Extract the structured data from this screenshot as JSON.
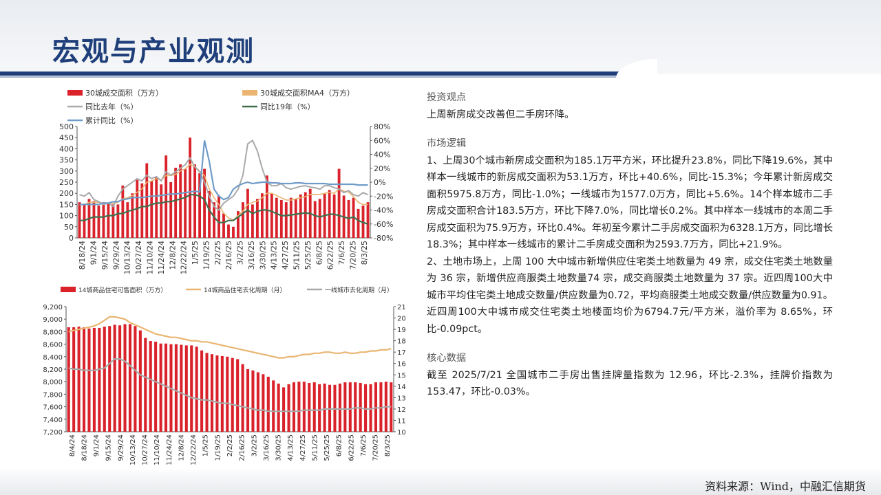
{
  "header": {
    "title": "宏观与产业观测"
  },
  "source": "资料来源：Wind，中融汇信期货",
  "panel": {
    "view_title": "投资观点",
    "view_text": "上周新房成交改善但二手房环降。",
    "logic_title": "市场逻辑",
    "logic_p1": "1、上周30个城市新房成交面积为185.1万平方米，环比提升23.8%，同比下降19.6%，其中样本一线城市的新房成交面积为53.1万方，环比+40.6%，同比-15.3%；今年累计新房成交面积5975.8万方，同比-1.0%；一线城市为1577.0万方，同比+5.6%。14个样本城市二手房成交面积合计183.5万方，环比下降7.0%，同比增长0.2%。其中样本一线城市的本周二手房成交面积为75.9万方，环比0.4%。年初至今累计二手房成交面积为6328.1万方，同比增长18.3%；其中样本一线城市的累计二手房成交面积为2593.7万方，同比+21.9%。",
    "logic_p2": "2、土地市场上，上周 100 大中城市新增供应住宅类土地数量为 49 宗，成交住宅类土地数量为 36 宗，新增供应商服类土地数量74 宗，成交商服类土地数量为 37 宗。近四周100大中城市平均住宅类土地成交数量/供应数量为0.72，平均商服类土地成交数量/供应数量为0.91。近四周100大中城市成交住宅类土地楼面均价为6794.7元/平方米，溢价率为 8.65%，环比-0.09pct。",
    "core_title": "核心数据",
    "core_text": "截至 2025/7/21 全国城市二手房出售挂牌量指数为 12.96，环比-2.3%，挂牌价指数为 153.47，环比-0.03%。"
  },
  "colors": {
    "red": "#d9222a",
    "orange": "#e9b571",
    "gray": "#a9a9a9",
    "green": "#3f6e4e",
    "blue": "#6f9bc8",
    "navy": "#1f3f7a"
  },
  "chart_data": [
    {
      "type": "bar",
      "title": "",
      "legend": [
        "30城成交面积（万方）",
        "30城成交面积MA4（万方）",
        "同比去年（%）",
        "同比19年（%）",
        "累计同比（%）"
      ],
      "yleft": {
        "min": 0,
        "max": 500,
        "ticks": [
          "500",
          "450",
          "400",
          "350",
          "300",
          "250",
          "200",
          "150",
          "100",
          "50",
          "0"
        ]
      },
      "yright": {
        "min": -80,
        "max": 80,
        "ticks": [
          "80%",
          "60%",
          "40%",
          "20%",
          "0%",
          "-20%",
          "-40%",
          "-60%",
          "-80%"
        ]
      },
      "x_ticks": [
        "8/18/24",
        "9/1/24",
        "9/15/24",
        "9/29/24",
        "10/13/24",
        "10/27/24",
        "11/10/24",
        "11/24/24",
        "12/8/24",
        "12/22/24",
        "1/5/25",
        "1/19/25",
        "2/2/25",
        "2/16/25",
        "3/2/25",
        "3/16/25",
        "3/30/25",
        "4/13/25",
        "4/27/25",
        "5/11/25",
        "5/25/25",
        "6/8/25",
        "6/22/25",
        "7/6/25",
        "7/20/25",
        "8/3/25"
      ],
      "series": [
        {
          "name": "30城成交面积（万方）",
          "values": [
            160,
            150,
            175,
            165,
            145,
            160,
            155,
            150,
            150,
            235,
            160,
            200,
            260,
            245,
            335,
            255,
            270,
            240,
            370,
            250,
            315,
            330,
            310,
            450,
            330,
            290,
            310,
            210,
            160,
            190,
            110,
            60,
            50,
            120,
            160,
            220,
            150,
            175,
            200,
            280,
            200,
            180,
            170,
            160,
            180,
            175,
            195,
            205,
            220,
            165,
            175,
            200,
            215,
            195,
            310,
            190,
            170,
            180,
            130,
            145,
            160
          ]
        },
        {
          "name": "30城成交面积MA4（万方）",
          "values": [
            150,
            150,
            160,
            160,
            160,
            155,
            155,
            155,
            160,
            175,
            180,
            190,
            205,
            220,
            250,
            255,
            265,
            260,
            280,
            280,
            285,
            300,
            310,
            330,
            320,
            300,
            280,
            220,
            180,
            150,
            110,
            90,
            80,
            100,
            120,
            150,
            160,
            165,
            180,
            200,
            200,
            190,
            180,
            170,
            170,
            175,
            180,
            185,
            195,
            195,
            195,
            200,
            205,
            200,
            220,
            210,
            205,
            185,
            160,
            150,
            150
          ]
        },
        {
          "name": "同比去年（%）",
          "values": [
            -18,
            -20,
            -15,
            -25,
            -28,
            -32,
            -30,
            -35,
            -20,
            -10,
            -5,
            0,
            5,
            2,
            10,
            5,
            8,
            2,
            15,
            10,
            15,
            20,
            25,
            35,
            22,
            15,
            0,
            -20,
            -35,
            -40,
            -30,
            -25,
            -20,
            -10,
            10,
            55,
            60,
            45,
            20,
            0,
            -5,
            -5,
            -2,
            -8,
            -10,
            -8,
            -6,
            -5,
            -7,
            -8,
            -10,
            -5,
            -5,
            -8,
            -10,
            -15,
            -12,
            -18,
            -20,
            -15,
            -18
          ]
        },
        {
          "name": "同比19年（%）",
          "values": [
            -55,
            -55,
            -52,
            -50,
            -50,
            -50,
            -48,
            -48,
            -45,
            -45,
            -42,
            -40,
            -38,
            -35,
            -35,
            -32,
            -30,
            -30,
            -28,
            -28,
            -26,
            -24,
            -22,
            -18,
            -18,
            -20,
            -25,
            -40,
            -50,
            -58,
            -58,
            -55,
            -55,
            -50,
            -45,
            -40,
            -45,
            -42,
            -40,
            -40,
            -42,
            -45,
            -48,
            -48,
            -47,
            -46,
            -45,
            -44,
            -45,
            -48,
            -50,
            -48,
            -46,
            -46,
            -48,
            -50,
            -52,
            -50,
            -55,
            -58,
            -60
          ]
        },
        {
          "name": "累计同比（%）",
          "values": [
            -32,
            -32,
            -32,
            -32,
            -32,
            -30,
            -30,
            -28,
            -28,
            -25,
            -24,
            -22,
            -22,
            -22,
            -21,
            -20,
            -20,
            -19,
            -18,
            -17,
            -17,
            -16,
            -15,
            -14,
            -13,
            -14,
            60,
            30,
            -10,
            -20,
            -25,
            -22,
            -10,
            -5,
            -2,
            0,
            -2,
            -1,
            0,
            0,
            -1,
            -1,
            -2,
            -2,
            -2,
            -1,
            -1,
            -2,
            -2,
            -2,
            -2,
            -2,
            -3,
            -3,
            -3,
            -3,
            -3,
            -3,
            -4,
            -4,
            -4
          ]
        }
      ]
    },
    {
      "type": "bar",
      "title": "",
      "legend": [
        "14城商品住宅可售面积（万方）",
        "14城商品住宅去化周期（月）",
        "一线城市去化周期（月）"
      ],
      "yleft": {
        "min": 7200,
        "max": 9200,
        "ticks": [
          "9,200",
          "9,000",
          "8,800",
          "8,600",
          "8,400",
          "8,200",
          "8,000",
          "7,800",
          "7,600",
          "7,400",
          "7,200"
        ]
      },
      "yright": {
        "min": 10,
        "max": 21,
        "ticks": [
          "21",
          "20",
          "19",
          "18",
          "17",
          "16",
          "15",
          "14",
          "13",
          "12",
          "11",
          "10"
        ]
      },
      "x_ticks": [
        "8/4/24",
        "8/18/24",
        "9/1/24",
        "9/15/24",
        "9/29/24",
        "10/13/24",
        "10/27/24",
        "11/10/24",
        "11/24/24",
        "12/8/24",
        "12/22/24",
        "1/5/25",
        "1/19/25",
        "2/2/25",
        "2/16/25",
        "3/2/25",
        "3/16/25",
        "3/30/25",
        "4/13/25",
        "4/27/25",
        "5/11/25",
        "5/25/25",
        "6/8/25",
        "6/22/25",
        "7/6/25",
        "7/20/25",
        "8/3/25"
      ],
      "series": [
        {
          "name": "14城商品住宅可售面积（万方）",
          "values": [
            8870,
            8870,
            8880,
            8870,
            8850,
            8860,
            8860,
            8880,
            8890,
            8910,
            8900,
            8920,
            8920,
            8890,
            8820,
            8700,
            8650,
            8640,
            8610,
            8610,
            8600,
            8600,
            8590,
            8580,
            8580,
            8560,
            8500,
            8460,
            8440,
            8420,
            8410,
            8400,
            8380,
            8360,
            8280,
            8200,
            8180,
            8150,
            8120,
            8080,
            8020,
            7970,
            7910,
            7960,
            7990,
            8000,
            8000,
            7980,
            7990,
            7960,
            7970,
            7950,
            7950,
            7970,
            7990,
            7990,
            7990,
            7980,
            7960,
            7960,
            7990,
            7990,
            8000,
            7990
          ]
        },
        {
          "name": "14城商品住宅去化周期（月）",
          "values": [
            18.8,
            18.9,
            19.0,
            19.1,
            19.2,
            19.3,
            19.5,
            19.8,
            20.1,
            20.1,
            20.0,
            19.9,
            19.6,
            19.4,
            19.2,
            19.0,
            18.8,
            18.6,
            18.5,
            18.4,
            18.3,
            18.3,
            18.2,
            18.1,
            18.0,
            18.0,
            17.9,
            17.9,
            17.8,
            17.7,
            17.6,
            17.5,
            17.4,
            17.3,
            17.2,
            17.1,
            17.0,
            16.9,
            16.8,
            16.7,
            16.6,
            16.5,
            16.5,
            16.6,
            16.6,
            16.7,
            16.8,
            16.8,
            16.9,
            16.9,
            17.0,
            17.0,
            16.9,
            16.9,
            17.0,
            16.9,
            16.9,
            17.0,
            17.0,
            17.1,
            17.1,
            17.2,
            17.2,
            17.3
          ]
        },
        {
          "name": "一线城市去化周期（月）",
          "values": [
            15.6,
            15.5,
            15.5,
            15.4,
            15.4,
            15.4,
            15.5,
            15.6,
            16.0,
            16.4,
            16.4,
            16.2,
            15.8,
            15.4,
            15.0,
            14.8,
            14.6,
            14.4,
            14.2,
            14.0,
            13.8,
            13.6,
            13.4,
            13.2,
            13.0,
            12.9,
            12.8,
            12.8,
            12.7,
            12.6,
            12.5,
            12.5,
            12.4,
            12.3,
            12.2,
            12.1,
            12.0,
            11.9,
            11.9,
            11.8,
            11.8,
            11.8,
            11.8,
            11.8,
            11.8,
            11.8,
            11.9,
            11.9,
            11.9,
            11.9,
            12.0,
            12.0,
            12.0,
            12.0,
            12.0,
            12.0,
            12.1,
            12.1,
            12.0,
            12.0,
            12.1,
            12.1,
            12.2,
            12.2
          ]
        }
      ]
    }
  ]
}
